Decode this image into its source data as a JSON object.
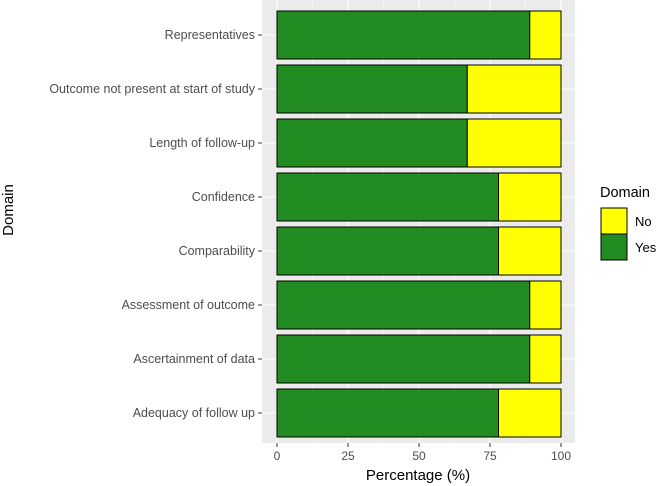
{
  "chart_data": {
    "type": "bar",
    "orientation": "horizontal",
    "stacked": true,
    "xlabel": "Percentage (%)",
    "ylabel": "Domain",
    "xlim": [
      0,
      100
    ],
    "xticks": [
      0,
      25,
      50,
      75,
      100
    ],
    "grid": true,
    "legend_position": "right",
    "legend_title": "Domain",
    "categories": [
      "Representatives",
      "Outcome not present at start of study",
      "Length of follow-up",
      "Confidence",
      "Comparability",
      "Assessment of outcome",
      "Ascertainment of data",
      "Adequacy of follow up"
    ],
    "series": [
      {
        "name": "Yes",
        "color": "#228b22",
        "values": [
          89,
          67,
          67,
          78,
          78,
          89,
          89,
          78
        ]
      },
      {
        "name": "No",
        "color": "#ffff00",
        "values": [
          11,
          33,
          33,
          22,
          22,
          11,
          11,
          22
        ]
      }
    ],
    "legend_order": [
      "No",
      "Yes"
    ]
  }
}
